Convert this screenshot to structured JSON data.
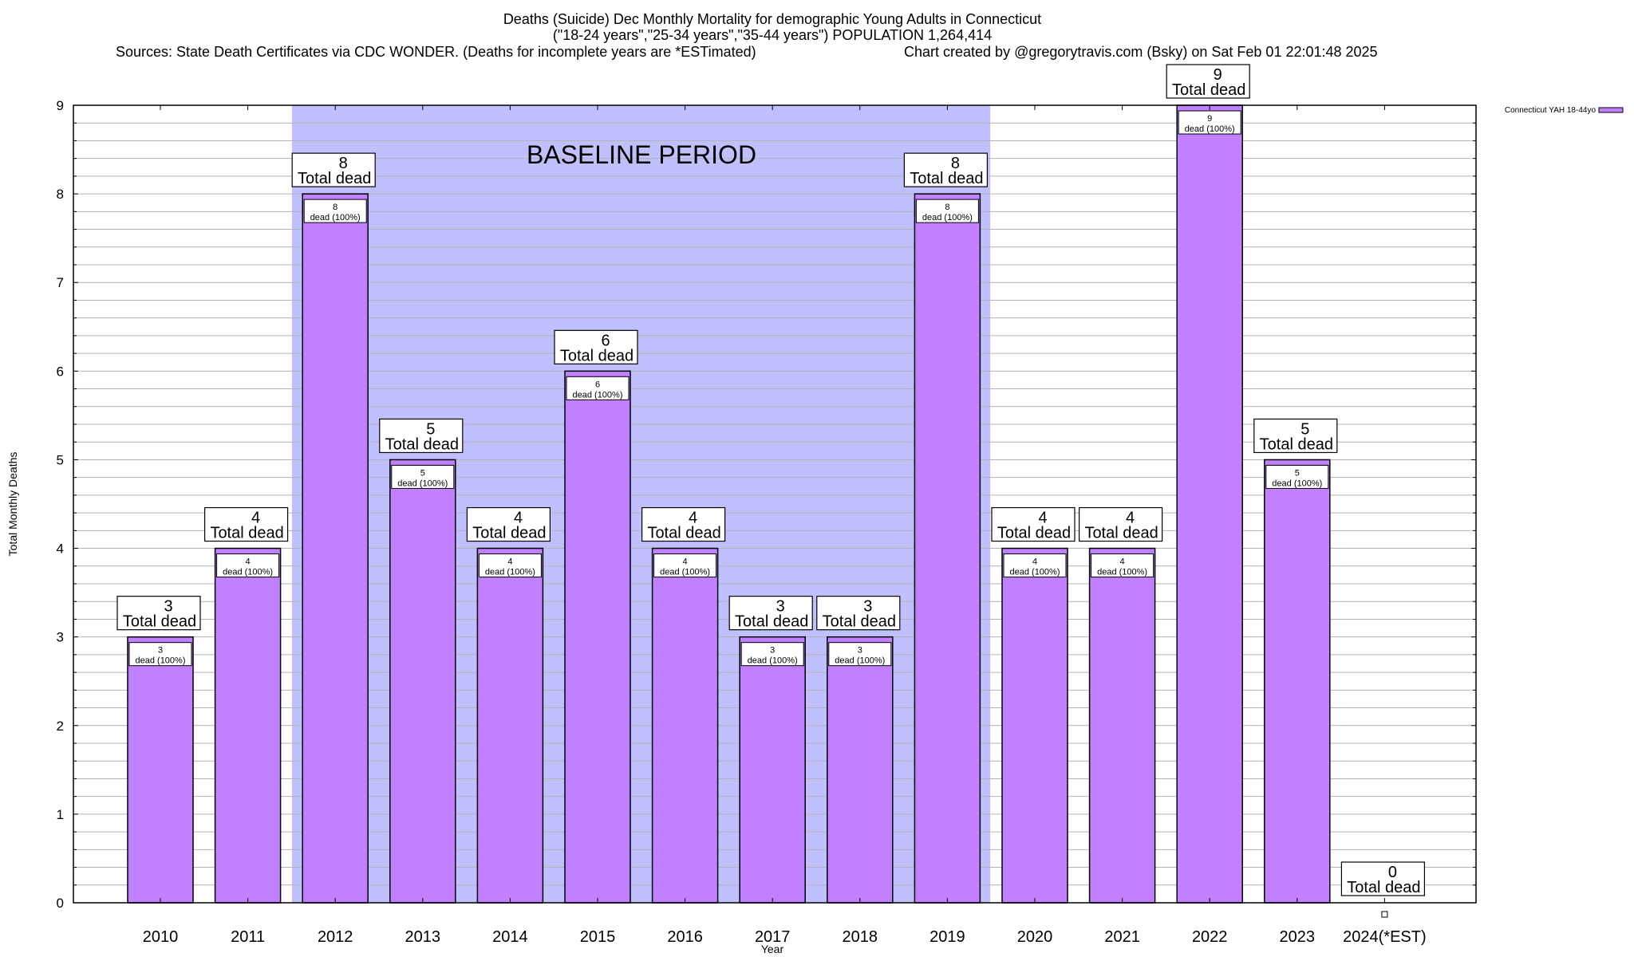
{
  "chart_data": {
    "type": "bar",
    "title_lines": [
      "Deaths (Suicide) Dec Monthly Mortality for demographic Young Adults in Connecticut",
      "(\"18-24 years\",\"25-34 years\",\"35-44 years\") POPULATION 1,264,414"
    ],
    "sources": "Sources: State Death Certificates via CDC WONDER. (Deaths for incomplete years are *ESTimated)",
    "credit": "Chart created by @gregorytravis.com (Bsky) on Sat Feb 01 22:01:48 2025",
    "xlabel": "Year",
    "ylabel": "Total Monthly Deaths",
    "ylim": [
      0,
      9
    ],
    "yticks": [
      "0",
      "1",
      "2",
      "3",
      "4",
      "5",
      "6",
      "7",
      "8",
      "9"
    ],
    "minor_grid_per_unit": 5,
    "grid": true,
    "categories": [
      "2010",
      "2011",
      "2012",
      "2013",
      "2014",
      "2015",
      "2016",
      "2017",
      "2018",
      "2019",
      "2020",
      "2021",
      "2022",
      "2023",
      "2024(*EST)"
    ],
    "series": [
      {
        "name": "Connecticut YAH 18-44yo",
        "color": "#c080ff",
        "values": [
          3,
          4,
          8,
          5,
          4,
          6,
          4,
          3,
          3,
          8,
          4,
          4,
          9,
          5,
          0
        ]
      }
    ],
    "total_label_suffix": "Total dead",
    "inner_label_suffix": "dead (100%)",
    "baseline": {
      "label": "BASELINE PERIOD",
      "from": "2012",
      "to": "2019",
      "color": "#c0c0ff"
    },
    "legend": {
      "position": "top-right",
      "label": "Connecticut YAH 18-44yo"
    }
  }
}
